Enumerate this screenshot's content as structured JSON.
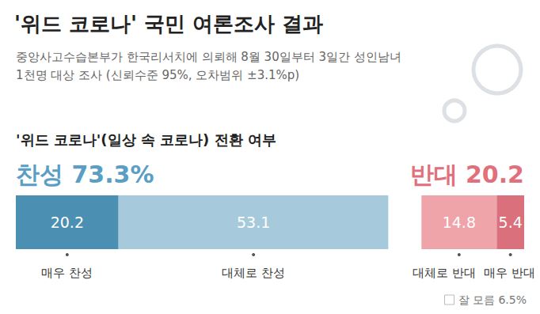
{
  "chart_data": {
    "type": "bar",
    "orientation": "horizontal",
    "stacked": true,
    "title": "'위드 코로나' 국민 여론조사 결과",
    "subtitle": [
      "중앙사고수습본부가 한국리서치에 의뢰해 8월 30일부터 3일간 성인남녀",
      "1천명 대상 조사 (신뢰수준 95%, 오차범위 ±3.1%p)"
    ],
    "heading": "'위드 코로나'(일상 속 코로나) 전환 여부",
    "summary": [
      {
        "text": "찬성 73.3%",
        "color": "#5a9ec4"
      },
      {
        "text": "반대 20.2",
        "color": "#e0707c"
      }
    ],
    "categories": [
      null
    ],
    "series": [
      {
        "name": "매우 찬성",
        "color": "#4b8fb2",
        "values": [
          20.2
        ]
      },
      {
        "name": "대체로 찬성",
        "color": "#a6cadb",
        "values": [
          53.1
        ]
      },
      {
        "name": "잘 모름",
        "color": "#ffffff",
        "values": [
          6.5
        ],
        "value_labels": [
          "6.5%"
        ]
      },
      {
        "name": "대체로 반대",
        "color": "#eea4a9",
        "values": [
          14.8
        ]
      },
      {
        "name": "매우 반대",
        "color": "#d9707c",
        "values": [
          5.4
        ]
      }
    ],
    "xlim": [
      0,
      100
    ],
    "data_labels": true,
    "tick_labels": false,
    "grid": false,
    "legend": "bottom-right"
  }
}
